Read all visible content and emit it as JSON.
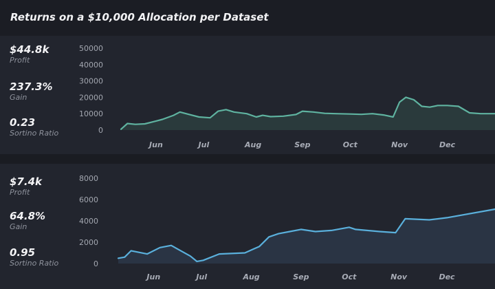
{
  "title": "Returns on a $10,000 Allocation per Dataset",
  "colors": {
    "background": "#1c1e26",
    "panel": "#22252e",
    "series_0_line": "#5fb3a0",
    "series_0_fill": "#2a3a3c",
    "series_1_line": "#5ab0dc",
    "series_1_fill": "#2a3444"
  },
  "panels": [
    {
      "stats": [
        {
          "value": "$44.8k",
          "label": "Profit"
        },
        {
          "value": "237.3%",
          "label": "Gain"
        },
        {
          "value": "0.23",
          "label": "Sortino Ratio"
        }
      ]
    },
    {
      "stats": [
        {
          "value": "$7.4k",
          "label": "Profit"
        },
        {
          "value": "64.8%",
          "label": "Gain"
        },
        {
          "value": "0.95",
          "label": "Sortino Ratio"
        }
      ]
    }
  ],
  "chart_data": [
    {
      "type": "area",
      "title": "",
      "xlabel": "",
      "ylabel": "",
      "ylim": [
        0,
        50000
      ],
      "yticks": [
        0,
        10000,
        20000,
        30000,
        40000,
        50000
      ],
      "xticks": [
        "Jun",
        "Jul",
        "Aug",
        "Sep",
        "Oct",
        "Nov",
        "Dec"
      ],
      "xlim": [
        "2023-05-10",
        "2023-12-31"
      ],
      "grid": false,
      "series": [
        {
          "x": [
            "2023-05-10",
            "2023-05-14",
            "2023-05-19",
            "2023-05-25",
            "2023-06-01",
            "2023-06-05",
            "2023-06-12",
            "2023-06-16",
            "2023-06-22",
            "2023-06-28",
            "2023-07-05",
            "2023-07-10",
            "2023-07-15",
            "2023-07-20",
            "2023-07-28",
            "2023-08-03",
            "2023-08-07",
            "2023-08-12",
            "2023-08-20",
            "2023-08-28",
            "2023-09-01",
            "2023-09-08",
            "2023-09-15",
            "2023-09-22",
            "2023-10-01",
            "2023-10-08",
            "2023-10-15",
            "2023-10-22",
            "2023-10-28",
            "2023-11-01",
            "2023-11-05",
            "2023-11-10",
            "2023-11-15",
            "2023-11-20",
            "2023-11-25",
            "2023-12-01",
            "2023-12-08",
            "2023-12-15",
            "2023-12-22",
            "2023-12-31"
          ],
          "values": [
            500,
            4000,
            3500,
            3800,
            5500,
            6500,
            9000,
            11000,
            9500,
            8000,
            7500,
            11500,
            12500,
            11000,
            10000,
            8000,
            9000,
            8200,
            8500,
            9500,
            11500,
            11000,
            10200,
            10000,
            9800,
            9600,
            10000,
            9200,
            8000,
            17000,
            20000,
            18500,
            14500,
            14000,
            15000,
            15000,
            14500,
            10500,
            10000,
            10000
          ]
        }
      ]
    },
    {
      "type": "area",
      "title": "",
      "xlabel": "",
      "ylabel": "",
      "ylim": [
        0,
        8000
      ],
      "yticks": [
        0,
        2000,
        4000,
        6000,
        8000
      ],
      "xticks": [
        "Jun",
        "Jul",
        "Aug",
        "Sep",
        "Oct",
        "Nov",
        "Dec"
      ],
      "xlim": [
        "2023-05-10",
        "2023-12-31"
      ],
      "grid": false,
      "series": [
        {
          "x": [
            "2023-05-10",
            "2023-05-14",
            "2023-05-18",
            "2023-05-28",
            "2023-06-05",
            "2023-06-12",
            "2023-06-18",
            "2023-06-24",
            "2023-06-28",
            "2023-07-02",
            "2023-07-12",
            "2023-07-28",
            "2023-08-03",
            "2023-08-06",
            "2023-08-12",
            "2023-08-18",
            "2023-08-25",
            "2023-09-01",
            "2023-09-10",
            "2023-09-20",
            "2023-10-01",
            "2023-10-05",
            "2023-10-20",
            "2023-10-30",
            "2023-11-05",
            "2023-11-20",
            "2023-12-01",
            "2023-12-31"
          ],
          "values": [
            500,
            600,
            1200,
            900,
            1500,
            1700,
            1200,
            700,
            200,
            300,
            900,
            1000,
            1400,
            1600,
            2500,
            2800,
            3000,
            3200,
            3000,
            3100,
            3400,
            3200,
            3000,
            2900,
            4200,
            4100,
            4300,
            5100
          ]
        }
      ]
    }
  ]
}
